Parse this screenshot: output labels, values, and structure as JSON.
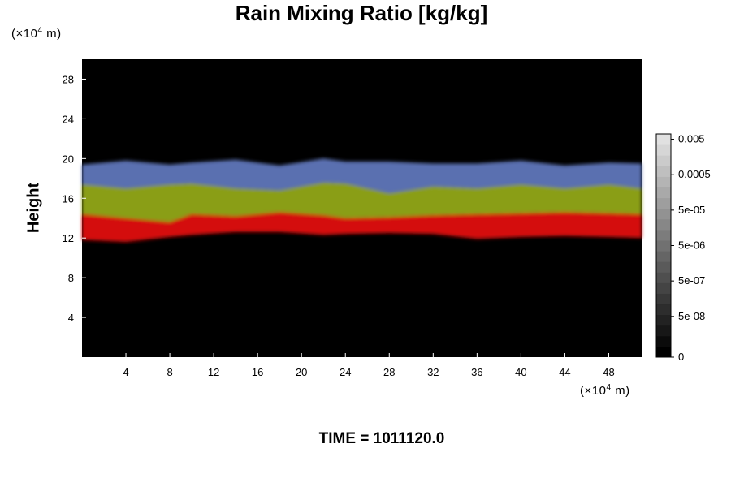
{
  "chart_data": {
    "type": "heatmap",
    "title": "Rain Mixing Ratio [kg/kg]",
    "ylabel": "Height",
    "xlabel": "",
    "x_unit_prefix": "(×10",
    "x_unit_exp": "4",
    "x_unit_suffix": " m)",
    "y_unit_prefix": "(×10",
    "y_unit_exp": "4",
    "y_unit_suffix": " m)",
    "xlim": [
      0,
      51
    ],
    "ylim": [
      0,
      30
    ],
    "x_ticks": [
      4,
      8,
      12,
      16,
      20,
      24,
      28,
      32,
      36,
      40,
      44,
      48
    ],
    "x_tick_labels": [
      "4",
      "8",
      "12",
      "16",
      "20",
      "24",
      "28",
      "32",
      "36",
      "40",
      "44",
      "48"
    ],
    "y_ticks": [
      4,
      8,
      12,
      16,
      20,
      24,
      28
    ],
    "y_tick_labels": [
      "4",
      "8",
      "12",
      "16",
      "20",
      "24",
      "28"
    ],
    "colorbar": {
      "labels": [
        "0.005",
        "0.0005",
        "5e-05",
        "5e-06",
        "5e-07",
        "5e-08",
        "0"
      ],
      "levels": 21
    },
    "bands": [
      {
        "name": "",
        "color": "#d41010",
        "x": [
          0,
          4,
          8,
          10,
          14,
          18,
          22,
          24,
          28,
          32,
          36,
          40,
          44,
          48,
          51
        ],
        "bottom": [
          11.8,
          11.6,
          12.1,
          12.3,
          12.6,
          12.6,
          12.3,
          12.4,
          12.5,
          12.4,
          11.9,
          12.1,
          12.2,
          12.1,
          12.0
        ],
        "top": [
          14.4,
          14.0,
          13.6,
          14.4,
          14.2,
          14.6,
          14.3,
          14.0,
          14.1,
          14.3,
          14.4,
          14.5,
          14.6,
          14.5,
          14.4
        ]
      },
      {
        "name": "",
        "color": "#8a9e12",
        "x": [
          0,
          4,
          8,
          10,
          14,
          18,
          22,
          24,
          28,
          32,
          36,
          40,
          44,
          48,
          51
        ],
        "bottom": [
          14.4,
          14.0,
          13.6,
          14.4,
          14.2,
          14.6,
          14.3,
          14.0,
          14.1,
          14.3,
          14.4,
          14.5,
          14.6,
          14.5,
          14.4
        ],
        "top": [
          17.4,
          17.0,
          17.4,
          17.5,
          17.0,
          16.8,
          17.6,
          17.5,
          16.5,
          17.2,
          17.0,
          17.4,
          17.0,
          17.4,
          17.0
        ]
      },
      {
        "name": "",
        "color": "#5a6fb0",
        "x": [
          0,
          4,
          8,
          10,
          14,
          18,
          22,
          24,
          28,
          32,
          36,
          40,
          44,
          48,
          51
        ],
        "bottom": [
          17.4,
          17.0,
          17.4,
          17.5,
          17.0,
          16.8,
          17.6,
          17.5,
          16.5,
          17.2,
          17.0,
          17.4,
          17.0,
          17.4,
          17.0
        ],
        "top": [
          19.4,
          19.8,
          19.4,
          19.6,
          19.9,
          19.3,
          20.0,
          19.7,
          19.7,
          19.5,
          19.5,
          19.8,
          19.3,
          19.6,
          19.5
        ]
      }
    ],
    "time_label": "TIME = 1011120.0"
  }
}
